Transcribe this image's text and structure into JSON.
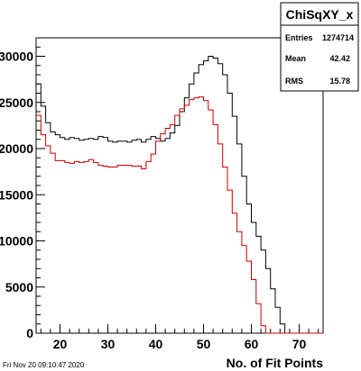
{
  "date_stamp": "Fri Nov 20 09:10:47 2020",
  "stats_box": {
    "title": "ChiSqXY_x",
    "entries_label": "Entries",
    "entries_value": "1274714",
    "mean_label": "Mean",
    "mean_value": "42.42",
    "rms_label": "RMS",
    "rms_value": "15.78"
  },
  "chart_data": {
    "type": "histogram",
    "title": "ChiSqXY_x",
    "xlabel": "No. of Fit Points",
    "ylabel": "",
    "xlim": [
      15,
      75
    ],
    "ylim": [
      0,
      32000
    ],
    "grid": false,
    "bin_width": 1,
    "x_ticks": [
      20,
      30,
      40,
      50,
      60,
      70
    ],
    "y_ticks": [
      0,
      5000,
      10000,
      15000,
      20000,
      25000,
      30000
    ],
    "x_tick_labels": [
      "20",
      "30",
      "40",
      "50",
      "60",
      "70"
    ],
    "y_tick_labels": [
      "0",
      "5000",
      "10000",
      "15000",
      "20000",
      "25000",
      "30000"
    ],
    "colors": {
      "series_1": "#000000",
      "series_2": "#cc0000"
    },
    "series": [
      {
        "x_start": 15,
        "values": [
          27000,
          24600,
          22800,
          21800,
          21500,
          21200,
          21000,
          21200,
          21100,
          20900,
          21000,
          21100,
          21000,
          21300,
          21200,
          20800,
          20700,
          20800,
          20800,
          20700,
          20900,
          21000,
          20700,
          21000,
          21300,
          21100,
          20800,
          21100,
          21700,
          22500,
          24000,
          25500,
          27000,
          28200,
          29100,
          29500,
          30000,
          29800,
          29200,
          28000,
          26000,
          23500,
          20500,
          17000,
          14000,
          12000,
          10500,
          9000,
          7000,
          4800,
          2800,
          1000,
          0,
          0,
          0,
          0,
          0,
          0,
          0,
          0
        ]
      },
      {
        "x_start": 15,
        "values": [
          23600,
          21500,
          20300,
          19500,
          18700,
          18700,
          18500,
          18400,
          18600,
          18500,
          18600,
          18800,
          18500,
          18200,
          18100,
          18000,
          18000,
          18200,
          18200,
          18200,
          18100,
          18100,
          17800,
          18600,
          19400,
          20800,
          21600,
          22200,
          22600,
          23600,
          24300,
          24700,
          25300,
          25500,
          25600,
          25200,
          24200,
          22600,
          20500,
          18000,
          15500,
          13000,
          11000,
          9500,
          7800,
          5800,
          3200,
          800,
          0,
          0,
          0,
          0,
          0,
          0,
          0,
          0,
          0,
          0,
          0,
          0
        ]
      }
    ]
  }
}
